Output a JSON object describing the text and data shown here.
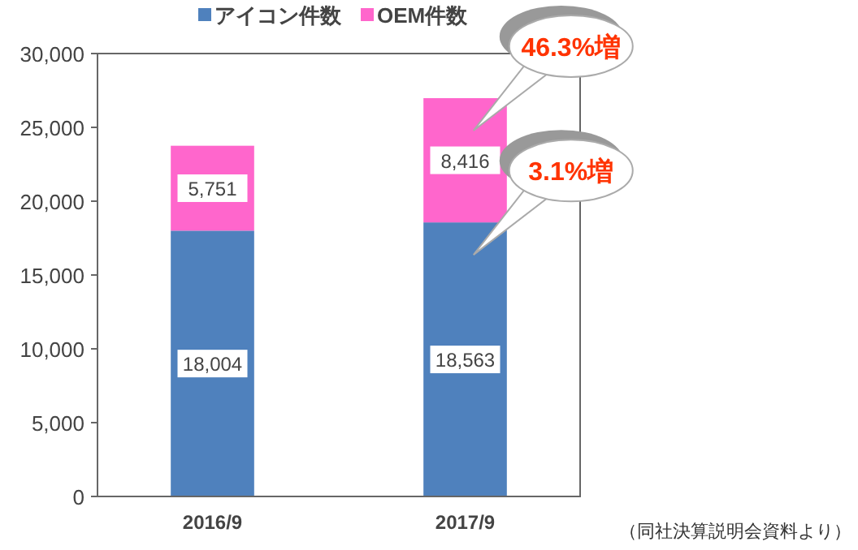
{
  "chart_data": {
    "type": "bar",
    "stacked": true,
    "categories": [
      "2016/9",
      "2017/9"
    ],
    "series": [
      {
        "name": "アイコン件数",
        "color": "#4f81bd",
        "values": [
          18004,
          18563
        ],
        "value_labels": [
          "18,004",
          "18,563"
        ]
      },
      {
        "name": "OEM件数",
        "color": "#ff66cc",
        "values": [
          5751,
          8416
        ],
        "value_labels": [
          "5,751",
          "8,416"
        ]
      }
    ],
    "ylim": [
      0,
      30000
    ],
    "yticks": [
      {
        "value": 0,
        "label": "0"
      },
      {
        "value": 5000,
        "label": "5,000"
      },
      {
        "value": 10000,
        "label": "10,000"
      },
      {
        "value": 15000,
        "label": "15,000"
      },
      {
        "value": 20000,
        "label": "20,000"
      },
      {
        "value": 25000,
        "label": "25,000"
      },
      {
        "value": 30000,
        "label": "30,000"
      }
    ],
    "legend": "top",
    "grid": false,
    "annotations": [
      {
        "text": "46.3%増",
        "x": "2017/9",
        "y": 26979
      },
      {
        "text": "3.1%増",
        "x": "2017/9",
        "y": 18563
      },
      "（同社決算説明会資料より）"
    ]
  }
}
